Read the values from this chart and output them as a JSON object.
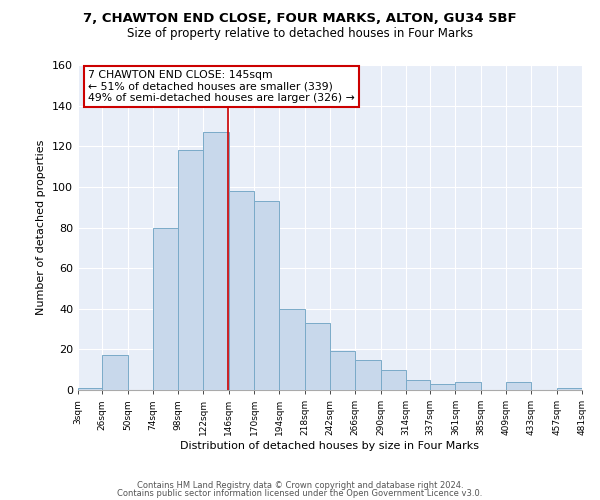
{
  "title1": "7, CHAWTON END CLOSE, FOUR MARKS, ALTON, GU34 5BF",
  "title2": "Size of property relative to detached houses in Four Marks",
  "xlabel": "Distribution of detached houses by size in Four Marks",
  "ylabel": "Number of detached properties",
  "bar_edges": [
    3,
    26,
    50,
    74,
    98,
    122,
    146,
    170,
    194,
    218,
    242,
    266,
    290,
    314,
    337,
    361,
    385,
    409,
    433,
    457,
    481
  ],
  "bar_heights": [
    1,
    17,
    0,
    80,
    118,
    127,
    98,
    93,
    40,
    33,
    19,
    15,
    10,
    5,
    3,
    4,
    0,
    4,
    0,
    1
  ],
  "bar_color": "#c8d8eb",
  "bar_edge_color": "#7aaac8",
  "ref_line_x": 145,
  "ref_line_color": "#cc0000",
  "annotation_line1": "7 CHAWTON END CLOSE: 145sqm",
  "annotation_line2": "← 51% of detached houses are smaller (339)",
  "annotation_line3": "49% of semi-detached houses are larger (326) →",
  "ylim": [
    0,
    160
  ],
  "yticks": [
    0,
    20,
    40,
    60,
    80,
    100,
    120,
    140,
    160
  ],
  "tick_labels": [
    "3sqm",
    "26sqm",
    "50sqm",
    "74sqm",
    "98sqm",
    "122sqm",
    "146sqm",
    "170sqm",
    "194sqm",
    "218sqm",
    "242sqm",
    "266sqm",
    "290sqm",
    "314sqm",
    "337sqm",
    "361sqm",
    "385sqm",
    "409sqm",
    "433sqm",
    "457sqm",
    "481sqm"
  ],
  "background_color": "#e8eef8",
  "grid_color": "#ffffff",
  "footer_line1": "Contains HM Land Registry data © Crown copyright and database right 2024.",
  "footer_line2": "Contains public sector information licensed under the Open Government Licence v3.0."
}
